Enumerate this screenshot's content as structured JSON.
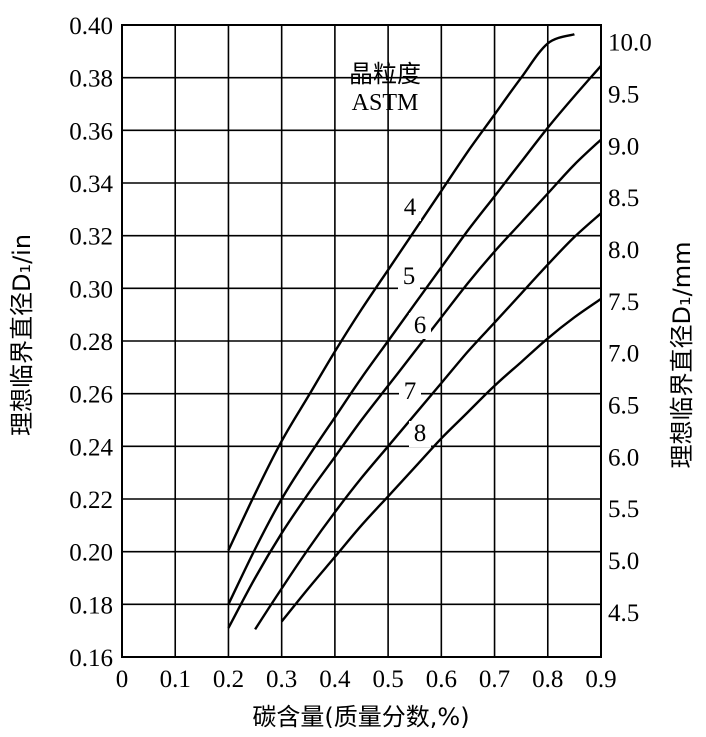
{
  "chart_data": {
    "type": "line",
    "xlabel": "碳含量(质量分数,%)",
    "ylabel_left": "理想临界直径D₁/in",
    "ylabel_right": "理想临界直径D₁/mm",
    "xlim": [
      0,
      0.9
    ],
    "ylim": [
      0.16,
      0.4
    ],
    "ylim_right_mm": [
      4.064,
      10.16
    ],
    "x_ticks": [
      "0",
      "0.1",
      "0.2",
      "0.3",
      "0.4",
      "0.5",
      "0.6",
      "0.7",
      "0.8",
      "0.9"
    ],
    "y_ticks_left": [
      "0.16",
      "0.18",
      "0.20",
      "0.22",
      "0.24",
      "0.26",
      "0.28",
      "0.30",
      "0.32",
      "0.34",
      "0.36",
      "0.38",
      "0.40"
    ],
    "y_ticks_right": [
      "4.5",
      "5.0",
      "5.5",
      "6.0",
      "6.5",
      "7.0",
      "7.5",
      "8.0",
      "8.5",
      "9.0",
      "9.5",
      "10.0"
    ],
    "legend_title_line1": "晶粒度",
    "legend_title_line2": "ASTM",
    "grid": true,
    "series": [
      {
        "name": "4",
        "x": [
          0.2,
          0.25,
          0.3,
          0.35,
          0.4,
          0.45,
          0.5,
          0.55,
          0.6,
          0.65,
          0.7,
          0.75,
          0.8,
          0.85
        ],
        "y": [
          0.2005,
          0.222,
          0.242,
          0.259,
          0.276,
          0.292,
          0.307,
          0.322,
          0.337,
          0.352,
          0.366,
          0.38,
          0.393,
          0.3965
        ]
      },
      {
        "name": "5",
        "x": [
          0.2,
          0.25,
          0.3,
          0.35,
          0.4,
          0.45,
          0.5,
          0.55,
          0.6,
          0.65,
          0.7,
          0.75,
          0.8,
          0.85,
          0.9
        ],
        "y": [
          0.18,
          0.201,
          0.22,
          0.236,
          0.251,
          0.266,
          0.28,
          0.294,
          0.308,
          0.322,
          0.335,
          0.348,
          0.361,
          0.373,
          0.3845
        ]
      },
      {
        "name": "6",
        "x": [
          0.2,
          0.25,
          0.3,
          0.35,
          0.4,
          0.45,
          0.5,
          0.55,
          0.6,
          0.65,
          0.7,
          0.75,
          0.8,
          0.85,
          0.9
        ],
        "y": [
          0.171,
          0.19,
          0.207,
          0.222,
          0.236,
          0.25,
          0.263,
          0.276,
          0.289,
          0.302,
          0.314,
          0.325,
          0.336,
          0.347,
          0.3565
        ]
      },
      {
        "name": "7",
        "x": [
          0.25,
          0.3,
          0.35,
          0.4,
          0.45,
          0.5,
          0.55,
          0.6,
          0.65,
          0.7,
          0.75,
          0.8,
          0.85,
          0.9
        ],
        "y": [
          0.1705,
          0.186,
          0.201,
          0.215,
          0.228,
          0.24,
          0.252,
          0.264,
          0.276,
          0.287,
          0.298,
          0.309,
          0.3195,
          0.3285
        ]
      },
      {
        "name": "8",
        "x": [
          0.3,
          0.35,
          0.4,
          0.45,
          0.5,
          0.55,
          0.6,
          0.65,
          0.7,
          0.75,
          0.8,
          0.85,
          0.9
        ],
        "y": [
          0.1735,
          0.186,
          0.198,
          0.21,
          0.221,
          0.232,
          0.243,
          0.253,
          0.263,
          0.272,
          0.281,
          0.289,
          0.296
        ]
      }
    ]
  }
}
